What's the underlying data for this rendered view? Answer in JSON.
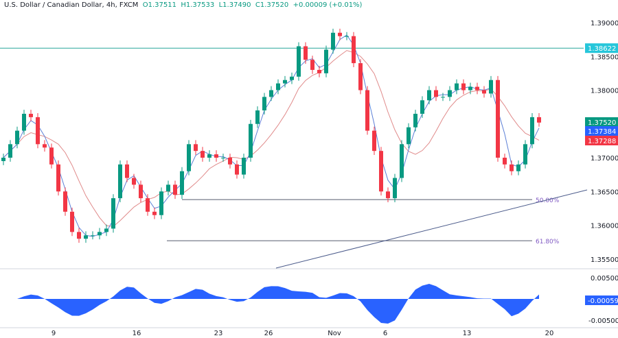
{
  "header": {
    "symbol": "U.S. Dollar / Canadian Dollar, 4h, FXCM",
    "open": "O1.37511",
    "high": "H1.37533",
    "low": "L1.37490",
    "close": "C1.37520",
    "change": "+0.00009 (+0.01%)"
  },
  "chart_data": {
    "type": "candlestick",
    "closes": [
      1.37,
      1.372,
      1.374,
      1.3765,
      1.376,
      1.372,
      1.3715,
      1.369,
      1.365,
      1.362,
      1.359,
      1.358,
      1.3585,
      1.3585,
      1.359,
      1.3595,
      1.364,
      1.369,
      1.367,
      1.366,
      1.364,
      1.362,
      1.3615,
      1.365,
      1.366,
      1.3645,
      1.368,
      1.372,
      1.371,
      1.37,
      1.3705,
      1.37,
      1.37,
      1.369,
      1.3675,
      1.37,
      1.375,
      1.377,
      1.379,
      1.38,
      1.381,
      1.3815,
      1.382,
      1.3865,
      1.3845,
      1.383,
      1.3825,
      1.386,
      1.3885,
      1.388,
      1.388,
      1.384,
      1.38,
      1.374,
      1.371,
      1.365,
      1.364,
      1.367,
      1.372,
      1.3745,
      1.3765,
      1.3785,
      1.38,
      1.379,
      1.379,
      1.38,
      1.381,
      1.38,
      1.3805,
      1.38,
      1.3795,
      1.3815,
      1.37,
      1.369,
      1.368,
      1.369,
      1.372,
      1.376,
      1.3752
    ],
    "y_ticks": [
      "1.39000",
      "1.38500",
      "1.38000",
      "1.37000",
      "1.36500",
      "1.36000",
      "1.35500"
    ],
    "y_tick_values": [
      1.39,
      1.385,
      1.38,
      1.37,
      1.365,
      1.36,
      1.355
    ],
    "x_ticks": [
      "9",
      "16",
      "23",
      "26",
      "Nov",
      "6",
      "13",
      "20"
    ],
    "ylim": [
      1.3535,
      1.3915
    ],
    "horizontal_line": {
      "value": 1.38622,
      "label": "1.38622",
      "color": "#26a69a"
    },
    "price_labels": [
      {
        "text": "1.37520",
        "color": "#089981"
      },
      {
        "text": "1.37384",
        "color": "#2962ff"
      },
      {
        "text": "1.37288",
        "color": "#f23645"
      }
    ],
    "fib_levels": [
      {
        "label": "50.00%",
        "value": 1.3638
      },
      {
        "label": "61.80%",
        "value": 1.3577
      }
    ],
    "colors": {
      "up": "#089981",
      "down": "#f23645",
      "ma_fast": "#5b7fd6",
      "ma_slow": "#e08a8a",
      "osc": "#2962ff"
    },
    "oscillator": {
      "ticks": [
        "0.00500",
        "-0.00500"
      ],
      "current": "-0.00059"
    }
  }
}
